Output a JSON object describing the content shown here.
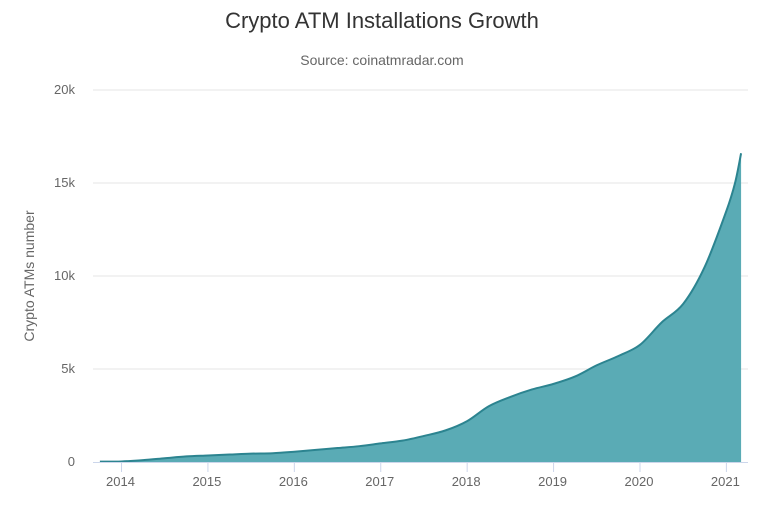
{
  "chart_data": {
    "type": "area",
    "title": "Crypto ATM Installations Growth",
    "subtitle": "Source: coinatmradar.com",
    "xlabel": "",
    "ylabel": "Crypto ATMs number",
    "xlim": [
      2013.67,
      2021.25
    ],
    "ylim": [
      0,
      20000
    ],
    "y_ticks": [
      0,
      5000,
      10000,
      15000,
      20000
    ],
    "y_tick_labels": [
      "0",
      "5k",
      "10k",
      "15k",
      "20k"
    ],
    "x_ticks": [
      2014,
      2015,
      2016,
      2017,
      2018,
      2019,
      2020,
      2021
    ],
    "x_tick_labels": [
      "2014",
      "2015",
      "2016",
      "2017",
      "2018",
      "2019",
      "2020",
      "2021"
    ],
    "grid": true,
    "legend": "none",
    "colors": {
      "fill": "#5aabb5",
      "line": "#2c8490",
      "grid": "#e6e6e6",
      "axis": "#ccd6eb"
    },
    "series": [
      {
        "x": [
          2013.75,
          2014.0,
          2014.25,
          2014.5,
          2014.75,
          2015.0,
          2015.25,
          2015.5,
          2015.75,
          2016.0,
          2016.25,
          2016.5,
          2016.75,
          2017.0,
          2017.25,
          2017.5,
          2017.75,
          2018.0,
          2018.25,
          2018.5,
          2018.75,
          2019.0,
          2019.25,
          2019.5,
          2019.75,
          2020.0,
          2020.25,
          2020.5,
          2020.75,
          2021.0,
          2021.1,
          2021.17
        ],
        "y": [
          20,
          30,
          100,
          200,
          300,
          350,
          400,
          450,
          470,
          550,
          650,
          750,
          850,
          1000,
          1150,
          1400,
          1700,
          2200,
          3000,
          3500,
          3900,
          4200,
          4600,
          5200,
          5700,
          6300,
          7500,
          8500,
          10500,
          13500,
          15000,
          16600
        ]
      }
    ]
  }
}
